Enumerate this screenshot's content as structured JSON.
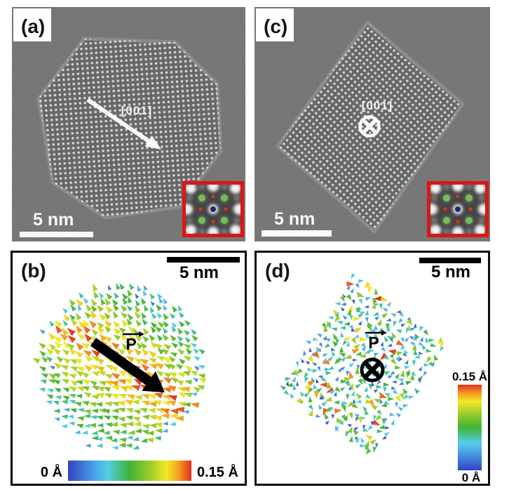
{
  "panels": {
    "a": {
      "label": "(a)",
      "scale_bar_label": "5 nm",
      "scale_bar_nm": 5,
      "zone_axis_label": "[001]"
    },
    "c": {
      "label": "(c)",
      "scale_bar_label": "5 nm",
      "scale_bar_nm": 5,
      "zone_axis_label": "[001]"
    },
    "b": {
      "label": "(b)",
      "scale_bar_label": "5 nm",
      "scale_bar_nm": 5,
      "polarization_label": "P",
      "colorbar_min_label": "0 Å",
      "colorbar_max_label": "0.15 Å"
    },
    "d": {
      "label": "(d)",
      "scale_bar_label": "5 nm",
      "scale_bar_nm": 5,
      "polarization_label": "P",
      "colorbar_min_label": "0.15 Å",
      "colorbar_min_bottom_label": "0 Å"
    }
  },
  "colors": {
    "tem_bg": "#6a6a6a",
    "particle_bg": "#585858",
    "lattice_dot": "#e8e8e8",
    "inset_bg": "#454545",
    "inset_border": "#dd1515",
    "atom_a_site": "#f2f2f2",
    "atom_b_dim": "#a0a0a0",
    "atom_green": "#6fc24d",
    "atom_oxygen": "#e2301d",
    "atom_center": "#1b2a6b",
    "annotation_white": "#ffffff",
    "annotation_black": "#000000",
    "jet_stops": [
      [
        0.0,
        "#3244c2"
      ],
      [
        0.22,
        "#4aa5e8"
      ],
      [
        0.32,
        "#55cde8"
      ],
      [
        0.5,
        "#3fb434"
      ],
      [
        0.68,
        "#a7cf2c"
      ],
      [
        0.8,
        "#f2e926"
      ],
      [
        0.9,
        "#f59c20"
      ],
      [
        1.0,
        "#e2301d"
      ]
    ]
  },
  "chart_data": [
    {
      "type": "quiver",
      "panel": "b",
      "description": "Atomic polarization displacement vector map of faceted nanoparticle viewed along [001]; red high-magnitude band along the net polarization diagonal, green/cyan periphery",
      "units": "Å",
      "value_range": [
        0,
        0.15
      ],
      "colormap": "jet",
      "legend": {
        "orientation": "horizontal",
        "min_label": "0 Å",
        "max_label": "0.15 Å"
      },
      "footprint": {
        "shape": "circle",
        "center": [
          157,
          162
        ],
        "radius": 123
      },
      "grid_spacing": 10.3,
      "glyph_size": 10,
      "jitter": 2.5,
      "seed": 11,
      "orientation_model": {
        "type": "graded",
        "top_angle_deg": 248,
        "bottom_angle_deg": 172,
        "jitter_deg": 24
      },
      "magnitude_model": {
        "type": "diagonal-band",
        "band_angle_deg": 35,
        "peak": 0.9,
        "falloff": 0.6,
        "noise": 0.28,
        "edge_random_prob": 0.38
      },
      "net_polarization": {
        "symbol": "P",
        "direction": "in-plane, toward lower right",
        "angle_deg": 35
      }
    },
    {
      "type": "quiver",
      "panel": "d",
      "description": "Atomic polarization displacement vector map of cuboidal nanoparticle viewed along [001]; randomly oriented low-magnitude vectors (mostly blue/cyan/green with sparse yellow/red), net polarization out of plane",
      "units": "Å",
      "value_range": [
        0,
        0.15
      ],
      "colormap": "jet",
      "legend": {
        "orientation": "vertical",
        "min_label": "0 Å",
        "max_label": "0.15 Å"
      },
      "footprint": {
        "shape": "parallelogram",
        "origin": [
          139,
          30
        ],
        "u": [
          135,
          102
        ],
        "v": [
          -107,
          160
        ]
      },
      "grid_spacing": 9.3,
      "glyph_size": 9,
      "jitter": 4,
      "seed": 23,
      "orientation_model": {
        "type": "random"
      },
      "magnitude_model": {
        "type": "random-mixture",
        "weights": [
          [
            0.2,
            0.03,
            0.2
          ],
          [
            0.58,
            0.22,
            0.55
          ],
          [
            0.14,
            0.55,
            0.75
          ],
          [
            0.08,
            0.78,
            1.0
          ]
        ]
      },
      "net_polarization": {
        "symbol": "P",
        "direction": "out-of-plane (into page)"
      }
    }
  ]
}
